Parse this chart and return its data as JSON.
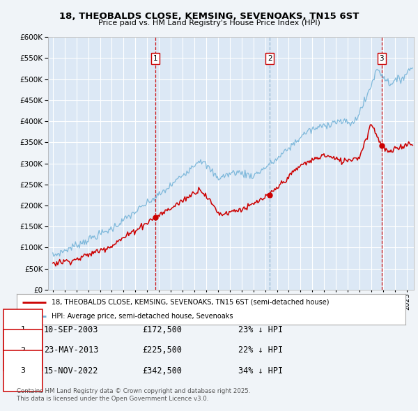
{
  "title_line1": "18, THEOBALDS CLOSE, KEMSING, SEVENOAKS, TN15 6ST",
  "title_line2": "Price paid vs. HM Land Registry's House Price Index (HPI)",
  "background_color": "#f0f4f8",
  "plot_bg_color": "#dce8f5",
  "grid_color": "#ffffff",
  "hpi_color": "#74b3d8",
  "price_color": "#cc0000",
  "legend_line1": "18, THEOBALDS CLOSE, KEMSING, SEVENOAKS, TN15 6ST (semi-detached house)",
  "legend_line2": "HPI: Average price, semi-detached house, Sevenoaks",
  "ylim": [
    0,
    600000
  ],
  "yticks": [
    0,
    50000,
    100000,
    150000,
    200000,
    250000,
    300000,
    350000,
    400000,
    450000,
    500000,
    550000,
    600000
  ],
  "xlim_left": 1994.6,
  "xlim_right": 2025.6,
  "transactions": [
    {
      "num": 1,
      "date": "10-SEP-2003",
      "price": 172500,
      "pct": "23% ↓ HPI",
      "year": 2003.7,
      "dash_color": "#cc0000"
    },
    {
      "num": 2,
      "date": "23-MAY-2013",
      "price": 225500,
      "pct": "22% ↓ HPI",
      "year": 2013.4,
      "dash_color": "#8ab0cc"
    },
    {
      "num": 3,
      "date": "15-NOV-2022",
      "price": 342500,
      "pct": "34% ↓ HPI",
      "year": 2022.88,
      "dash_color": "#cc0000"
    }
  ],
  "footnote1": "Contains HM Land Registry data © Crown copyright and database right 2025.",
  "footnote2": "This data is licensed under the Open Government Licence v3.0."
}
